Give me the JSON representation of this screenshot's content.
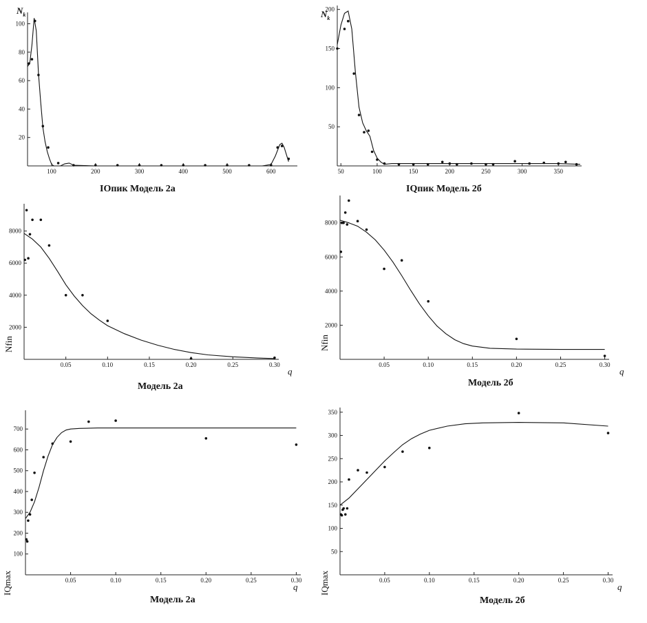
{
  "chart_data": [
    {
      "id": "p1",
      "type": "line",
      "caption": "IОпик Модель 2а",
      "ylabel": "N",
      "ylabel_sub": "k",
      "ylabel_style": "symbol",
      "xlabel": "",
      "xlim": [
        45,
        660
      ],
      "ylim": [
        0,
        108
      ],
      "xticks": [
        100,
        200,
        300,
        400,
        500,
        600
      ],
      "yticks": [
        20,
        40,
        60,
        80,
        100
      ],
      "points": {
        "x": [
          48,
          55,
          62,
          70,
          80,
          92,
          115,
          150,
          200,
          250,
          300,
          350,
          400,
          450,
          500,
          550,
          600,
          615,
          625,
          640
        ],
        "y": [
          72,
          75,
          102,
          64,
          28,
          13,
          2,
          0.5,
          0.5,
          0.5,
          0.5,
          0.5,
          0.5,
          0.5,
          0.5,
          0.5,
          0.5,
          13,
          14,
          5
        ]
      },
      "curve": {
        "x": [
          45,
          50,
          55,
          60,
          65,
          70,
          75,
          80,
          85,
          90,
          95,
          100,
          105,
          110,
          120,
          130,
          140,
          150,
          200,
          300,
          400,
          500,
          580,
          600,
          610,
          620,
          625,
          630,
          640
        ],
        "y": [
          70,
          72,
          85,
          104,
          95,
          65,
          45,
          27,
          17,
          10,
          5,
          1,
          0,
          0,
          0,
          1.5,
          2,
          0.5,
          0,
          0,
          0,
          0,
          0,
          1,
          7,
          15,
          16,
          13,
          3
        ]
      }
    },
    {
      "id": "p2",
      "type": "line",
      "caption": "IQпик Модель 2б",
      "ylabel": "N",
      "ylabel_sub": "k",
      "ylabel_style": "symbol",
      "xlabel": "",
      "xlim": [
        45,
        382
      ],
      "ylim": [
        0,
        205
      ],
      "xticks": [
        50,
        100,
        150,
        200,
        250,
        300,
        350
      ],
      "yticks": [
        50,
        100,
        150,
        200
      ],
      "points": {
        "x": [
          45,
          55,
          60,
          68,
          75,
          82,
          88,
          93,
          100,
          110,
          130,
          150,
          170,
          190,
          200,
          210,
          230,
          250,
          260,
          290,
          310,
          330,
          350,
          360,
          375
        ],
        "y": [
          150,
          175,
          185,
          118,
          65,
          43,
          45,
          18,
          8,
          3,
          2,
          2,
          2,
          5,
          3,
          2,
          3,
          2,
          2,
          6,
          3,
          4,
          3,
          5,
          2
        ]
      },
      "curve": {
        "x": [
          45,
          50,
          55,
          60,
          65,
          70,
          75,
          80,
          85,
          90,
          95,
          100,
          105,
          110,
          120,
          150,
          200,
          250,
          300,
          350,
          380
        ],
        "y": [
          155,
          180,
          195,
          198,
          175,
          120,
          75,
          55,
          45,
          38,
          20,
          10,
          5,
          2,
          3,
          3,
          3,
          3,
          3,
          3,
          2
        ]
      }
    },
    {
      "id": "p3",
      "type": "scatter",
      "caption": "Модель 2а",
      "ylabel": "Nfin",
      "xlabel": "q",
      "xlim": [
        0,
        0.305
      ],
      "ylim": [
        0,
        9700
      ],
      "xticks": [
        0.05,
        0.1,
        0.15,
        0.2,
        0.25,
        0.3
      ],
      "xticklabels": [
        "0.05",
        "0.10",
        "0.15",
        "0.20",
        "0.25",
        "0.30"
      ],
      "yticks": [
        2000,
        4000,
        6000,
        8000
      ],
      "points": {
        "x": [
          0.001,
          0.003,
          0.005,
          0.007,
          0.01,
          0.02,
          0.03,
          0.05,
          0.07,
          0.1,
          0.2,
          0.3
        ],
        "y": [
          6200,
          9300,
          6300,
          7800,
          8700,
          8700,
          7100,
          4000,
          4000,
          2400,
          50,
          100
        ]
      },
      "curve": {
        "x": [
          0,
          0.01,
          0.02,
          0.03,
          0.04,
          0.05,
          0.06,
          0.07,
          0.08,
          0.09,
          0.1,
          0.12,
          0.14,
          0.16,
          0.18,
          0.2,
          0.22,
          0.25,
          0.28,
          0.3
        ],
        "y": [
          7850,
          7500,
          7000,
          6300,
          5500,
          4650,
          3950,
          3350,
          2850,
          2450,
          2100,
          1600,
          1200,
          880,
          620,
          420,
          280,
          160,
          80,
          50
        ]
      }
    },
    {
      "id": "p4",
      "type": "scatter",
      "caption": "Модель 2б",
      "ylabel": "Nfin",
      "xlabel": "q",
      "xlim": [
        0,
        0.305
      ],
      "ylim": [
        0,
        9600
      ],
      "xticks": [
        0.05,
        0.1,
        0.15,
        0.2,
        0.25,
        0.3
      ],
      "xticklabels": [
        "0.05",
        "0.10",
        "0.15",
        "0.20",
        "0.25",
        "0.30"
      ],
      "yticks": [
        2000,
        4000,
        6000,
        8000
      ],
      "points": {
        "x": [
          0.001,
          0.002,
          0.004,
          0.006,
          0.008,
          0.01,
          0.02,
          0.03,
          0.05,
          0.07,
          0.1,
          0.2,
          0.3
        ],
        "y": [
          6300,
          8000,
          8000,
          8600,
          7900,
          9300,
          8100,
          7600,
          5300,
          5800,
          3400,
          1200,
          200
        ]
      },
      "curve": {
        "x": [
          0,
          0.01,
          0.02,
          0.03,
          0.04,
          0.05,
          0.06,
          0.07,
          0.08,
          0.09,
          0.1,
          0.11,
          0.12,
          0.13,
          0.14,
          0.15,
          0.17,
          0.2,
          0.25,
          0.3
        ],
        "y": [
          8150,
          8000,
          7800,
          7450,
          7000,
          6400,
          5700,
          4900,
          4050,
          3250,
          2550,
          1950,
          1500,
          1150,
          920,
          780,
          650,
          600,
          580,
          580
        ]
      }
    },
    {
      "id": "p5",
      "type": "scatter",
      "caption": "Модель 2а",
      "ylabel": "IQmax",
      "xlabel": "q",
      "xlim": [
        0,
        0.305
      ],
      "ylim": [
        0,
        790
      ],
      "xticks": [
        0.05,
        0.1,
        0.15,
        0.2,
        0.25,
        0.3
      ],
      "xticklabels": [
        "0.05",
        "0.10",
        "0.15",
        "0.20",
        "0.25",
        "0.30"
      ],
      "yticks": [
        100,
        200,
        300,
        400,
        500,
        600,
        700
      ],
      "points": {
        "x": [
          0.001,
          0.002,
          0.003,
          0.005,
          0.007,
          0.01,
          0.02,
          0.03,
          0.05,
          0.07,
          0.1,
          0.2,
          0.3
        ],
        "y": [
          170,
          160,
          260,
          290,
          360,
          490,
          565,
          630,
          640,
          735,
          740,
          655,
          625
        ]
      },
      "curve": {
        "x": [
          0,
          0.005,
          0.01,
          0.015,
          0.02,
          0.025,
          0.03,
          0.035,
          0.04,
          0.045,
          0.05,
          0.06,
          0.08,
          0.1,
          0.15,
          0.2,
          0.25,
          0.3
        ],
        "y": [
          270,
          300,
          350,
          420,
          500,
          570,
          625,
          660,
          683,
          695,
          700,
          703,
          705,
          705,
          705,
          705,
          705,
          705
        ]
      }
    },
    {
      "id": "p6",
      "type": "scatter",
      "caption": "Модель 2б",
      "ylabel": "IQmax",
      "xlabel": "q",
      "xlim": [
        0,
        0.305
      ],
      "ylim": [
        0,
        360
      ],
      "xticks": [
        0.05,
        0.1,
        0.15,
        0.2,
        0.25,
        0.3
      ],
      "xticklabels": [
        "0.05",
        "0.10",
        "0.15",
        "0.20",
        "0.25",
        "0.30"
      ],
      "yticks": [
        50,
        100,
        150,
        200,
        250,
        300,
        350
      ],
      "points": {
        "x": [
          0.001,
          0.002,
          0.003,
          0.004,
          0.006,
          0.008,
          0.01,
          0.02,
          0.03,
          0.05,
          0.07,
          0.1,
          0.2,
          0.3
        ],
        "y": [
          130,
          128,
          140,
          143,
          130,
          143,
          205,
          225,
          220,
          232,
          265,
          273,
          348,
          305
        ]
      },
      "curve": {
        "x": [
          0,
          0.01,
          0.02,
          0.03,
          0.04,
          0.05,
          0.06,
          0.07,
          0.08,
          0.09,
          0.1,
          0.12,
          0.14,
          0.16,
          0.2,
          0.25,
          0.3
        ],
        "y": [
          150,
          165,
          185,
          205,
          225,
          245,
          263,
          280,
          293,
          303,
          311,
          320,
          325,
          327,
          328,
          327,
          320
        ]
      }
    }
  ]
}
